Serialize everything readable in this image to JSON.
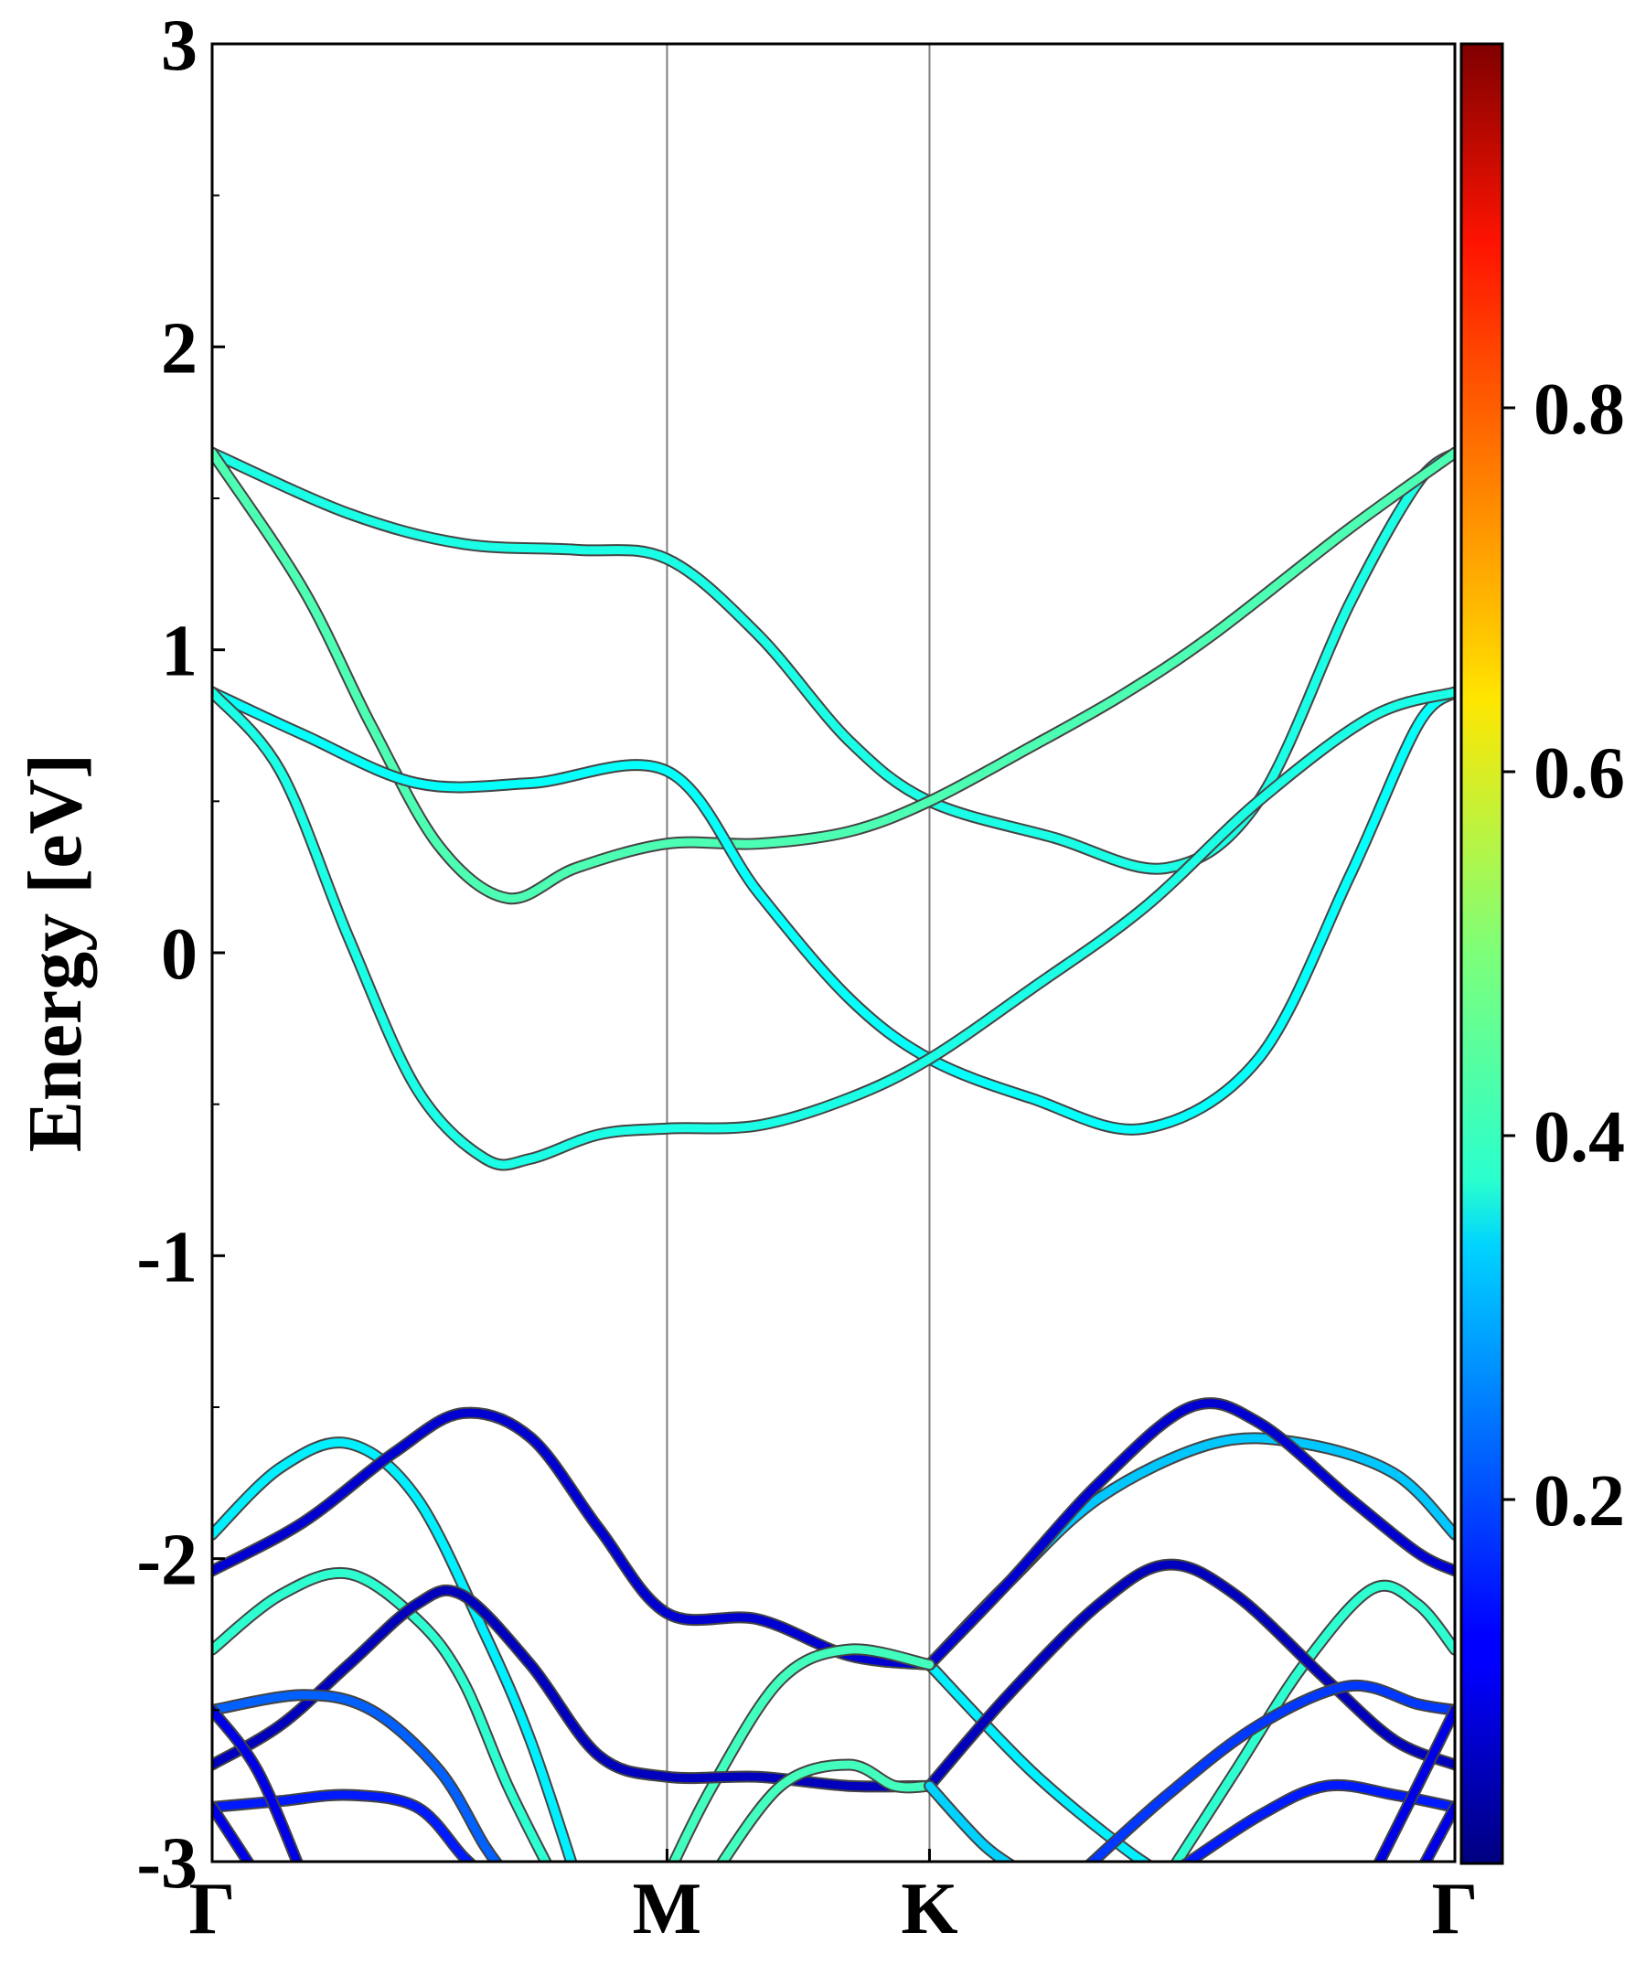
{
  "chart_data": {
    "type": "line",
    "title": "",
    "ylabel": "Energy [eV]",
    "xlabel": "",
    "ylim": [
      -3,
      3
    ],
    "y_major_ticks": [
      -3,
      -2,
      -1,
      0,
      1,
      2,
      3
    ],
    "y_minor_step": 0.5,
    "k_points": [
      {
        "label": "Γ",
        "x": 0
      },
      {
        "label": "M",
        "x": 1
      },
      {
        "label": "K",
        "x": 1.577
      },
      {
        "label": "Γ",
        "x": 2.732
      }
    ],
    "colorbar": {
      "colormap": "jet",
      "range": [
        0,
        1
      ],
      "ticks": [
        "0.2",
        "0.4",
        "0.6",
        "0.8"
      ]
    },
    "series": [
      {
        "c": 0.4,
        "points": [
          [
            0,
            1.65
          ],
          [
            0.3,
            1.45
          ],
          [
            0.55,
            1.35
          ],
          [
            0.8,
            1.33
          ],
          [
            1.0,
            1.3
          ],
          [
            1.2,
            1.05
          ],
          [
            1.4,
            0.7
          ],
          [
            1.577,
            0.5
          ],
          [
            1.85,
            0.38
          ],
          [
            2.1,
            0.28
          ],
          [
            2.3,
            0.5
          ],
          [
            2.5,
            1.15
          ],
          [
            2.65,
            1.55
          ],
          [
            2.732,
            1.65
          ]
        ]
      },
      {
        "c": 0.45,
        "points": [
          [
            0,
            1.65
          ],
          [
            0.2,
            1.2
          ],
          [
            0.35,
            0.75
          ],
          [
            0.5,
            0.35
          ],
          [
            0.65,
            0.18
          ],
          [
            0.8,
            0.28
          ],
          [
            1.0,
            0.36
          ],
          [
            1.2,
            0.36
          ],
          [
            1.4,
            0.4
          ],
          [
            1.577,
            0.5
          ],
          [
            1.8,
            0.68
          ],
          [
            2.0,
            0.85
          ],
          [
            2.2,
            1.05
          ],
          [
            2.5,
            1.4
          ],
          [
            2.732,
            1.65
          ]
        ]
      },
      {
        "c": 0.38,
        "points": [
          [
            0,
            0.86
          ],
          [
            0.2,
            0.72
          ],
          [
            0.45,
            0.56
          ],
          [
            0.7,
            0.56
          ],
          [
            1.0,
            0.6
          ],
          [
            1.2,
            0.2
          ],
          [
            1.4,
            -0.15
          ],
          [
            1.577,
            -0.35
          ],
          [
            1.8,
            -0.48
          ],
          [
            2.05,
            -0.58
          ],
          [
            2.3,
            -0.35
          ],
          [
            2.5,
            0.25
          ],
          [
            2.65,
            0.75
          ],
          [
            2.732,
            0.86
          ]
        ]
      },
      {
        "c": 0.4,
        "points": [
          [
            0,
            0.86
          ],
          [
            0.15,
            0.6
          ],
          [
            0.3,
            0.05
          ],
          [
            0.45,
            -0.45
          ],
          [
            0.6,
            -0.68
          ],
          [
            0.7,
            -0.68
          ],
          [
            0.85,
            -0.6
          ],
          [
            1.0,
            -0.58
          ],
          [
            1.2,
            -0.57
          ],
          [
            1.4,
            -0.48
          ],
          [
            1.577,
            -0.35
          ],
          [
            1.8,
            -0.12
          ],
          [
            2.05,
            0.15
          ],
          [
            2.3,
            0.5
          ],
          [
            2.55,
            0.78
          ],
          [
            2.732,
            0.86
          ]
        ]
      },
      {
        "c": 0.36,
        "points": [
          [
            0,
            -1.92
          ],
          [
            0.15,
            -1.7
          ],
          [
            0.3,
            -1.62
          ],
          [
            0.45,
            -1.8
          ],
          [
            0.6,
            -2.25
          ],
          [
            0.7,
            -2.6
          ],
          [
            0.8,
            -3.05
          ]
        ]
      },
      {
        "c": 0.36,
        "points": [
          [
            1.577,
            -2.35
          ],
          [
            1.8,
            -2.7
          ],
          [
            2.0,
            -2.95
          ],
          [
            2.1,
            -3.05
          ]
        ]
      },
      {
        "c": 0.32,
        "points": [
          [
            1.577,
            -2.35
          ],
          [
            1.75,
            -2.08
          ],
          [
            1.95,
            -1.8
          ],
          [
            2.2,
            -1.62
          ],
          [
            2.4,
            -1.62
          ],
          [
            2.6,
            -1.72
          ],
          [
            2.732,
            -1.92
          ]
        ]
      },
      {
        "c": 0.08,
        "points": [
          [
            0,
            -2.04
          ],
          [
            0.2,
            -1.88
          ],
          [
            0.4,
            -1.65
          ],
          [
            0.55,
            -1.52
          ],
          [
            0.7,
            -1.6
          ],
          [
            0.85,
            -1.9
          ],
          [
            1.0,
            -2.18
          ],
          [
            1.2,
            -2.2
          ],
          [
            1.4,
            -2.32
          ],
          [
            1.577,
            -2.35
          ]
        ]
      },
      {
        "c": 0.08,
        "points": [
          [
            1.577,
            -2.35
          ],
          [
            1.75,
            -2.08
          ],
          [
            1.95,
            -1.75
          ],
          [
            2.15,
            -1.5
          ],
          [
            2.3,
            -1.55
          ],
          [
            2.5,
            -1.8
          ],
          [
            2.65,
            -1.98
          ],
          [
            2.732,
            -2.04
          ]
        ]
      },
      {
        "c": 0.42,
        "points": [
          [
            0,
            -2.3
          ],
          [
            0.15,
            -2.12
          ],
          [
            0.3,
            -2.05
          ],
          [
            0.45,
            -2.2
          ],
          [
            0.55,
            -2.4
          ],
          [
            0.65,
            -2.75
          ],
          [
            0.75,
            -3.05
          ]
        ]
      },
      {
        "c": 0.44,
        "points": [
          [
            1.0,
            -3.05
          ],
          [
            1.1,
            -2.75
          ],
          [
            1.25,
            -2.4
          ],
          [
            1.4,
            -2.3
          ],
          [
            1.577,
            -2.35
          ]
        ]
      },
      {
        "c": 0.42,
        "points": [
          [
            2.1,
            -3.05
          ],
          [
            2.25,
            -2.7
          ],
          [
            2.4,
            -2.35
          ],
          [
            2.55,
            -2.1
          ],
          [
            2.65,
            -2.15
          ],
          [
            2.732,
            -2.3
          ]
        ]
      },
      {
        "c": 0.06,
        "points": [
          [
            0,
            -2.68
          ],
          [
            0.15,
            -2.55
          ],
          [
            0.3,
            -2.35
          ],
          [
            0.45,
            -2.15
          ],
          [
            0.55,
            -2.12
          ],
          [
            0.7,
            -2.35
          ],
          [
            0.85,
            -2.65
          ],
          [
            1.0,
            -2.72
          ],
          [
            1.2,
            -2.72
          ],
          [
            1.4,
            -2.75
          ],
          [
            1.577,
            -2.75
          ]
        ]
      },
      {
        "c": 0.06,
        "points": [
          [
            1.577,
            -2.75
          ],
          [
            1.75,
            -2.45
          ],
          [
            1.95,
            -2.15
          ],
          [
            2.1,
            -2.02
          ],
          [
            2.25,
            -2.12
          ],
          [
            2.45,
            -2.4
          ],
          [
            2.6,
            -2.6
          ],
          [
            2.732,
            -2.68
          ]
        ]
      },
      {
        "c": 0.44,
        "points": [
          [
            1.1,
            -3.05
          ],
          [
            1.25,
            -2.75
          ],
          [
            1.4,
            -2.68
          ],
          [
            1.5,
            -2.75
          ],
          [
            1.577,
            -2.75
          ]
        ]
      },
      {
        "c": 0.33,
        "points": [
          [
            1.577,
            -2.75
          ],
          [
            1.7,
            -2.95
          ],
          [
            1.8,
            -3.05
          ]
        ]
      },
      {
        "c": 0.22,
        "points": [
          [
            0,
            -2.5
          ],
          [
            0.2,
            -2.45
          ],
          [
            0.35,
            -2.5
          ],
          [
            0.5,
            -2.7
          ],
          [
            0.6,
            -2.95
          ],
          [
            0.65,
            -3.05
          ]
        ]
      },
      {
        "c": 0.18,
        "points": [
          [
            1.9,
            -3.05
          ],
          [
            2.1,
            -2.78
          ],
          [
            2.3,
            -2.55
          ],
          [
            2.5,
            -2.42
          ],
          [
            2.65,
            -2.48
          ],
          [
            2.732,
            -2.5
          ]
        ]
      },
      {
        "c": 0.15,
        "points": [
          [
            0,
            -2.82
          ],
          [
            0.15,
            -2.8
          ],
          [
            0.3,
            -2.78
          ],
          [
            0.45,
            -2.82
          ],
          [
            0.55,
            -2.98
          ],
          [
            0.6,
            -3.05
          ]
        ]
      },
      {
        "c": 0.15,
        "points": [
          [
            2.1,
            -3.05
          ],
          [
            2.3,
            -2.85
          ],
          [
            2.45,
            -2.75
          ],
          [
            2.6,
            -2.78
          ],
          [
            2.732,
            -2.82
          ]
        ]
      },
      {
        "c": 0.1,
        "points": [
          [
            0,
            -2.5
          ],
          [
            0.1,
            -2.7
          ],
          [
            0.2,
            -3.05
          ]
        ]
      },
      {
        "c": 0.1,
        "points": [
          [
            2.55,
            -3.05
          ],
          [
            2.65,
            -2.75
          ],
          [
            2.732,
            -2.5
          ]
        ]
      },
      {
        "c": 0.1,
        "points": [
          [
            0,
            -2.82
          ],
          [
            0.1,
            -3.05
          ]
        ]
      },
      {
        "c": 0.1,
        "points": [
          [
            2.65,
            -3.05
          ],
          [
            2.732,
            -2.82
          ]
        ]
      }
    ]
  }
}
